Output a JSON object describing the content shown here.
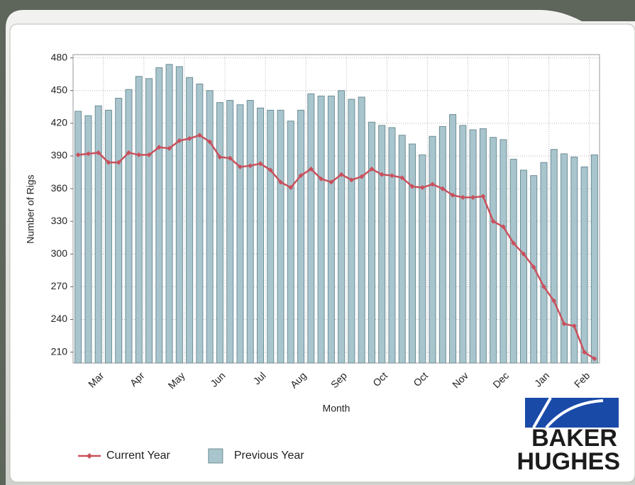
{
  "chart_data": {
    "type": "bar_line",
    "y_axis_label": "Number of Rigs",
    "x_axis_label": "Month",
    "categories": [
      null,
      null,
      "Mar",
      null,
      null,
      null,
      "Apr",
      null,
      null,
      null,
      "May",
      null,
      null,
      null,
      "Jun",
      null,
      null,
      null,
      "Jul",
      null,
      null,
      null,
      "Aug",
      null,
      null,
      null,
      "Sep",
      null,
      null,
      null,
      "Oct",
      null,
      null,
      null,
      "Oct",
      null,
      null,
      null,
      "Nov",
      null,
      null,
      null,
      "Dec",
      null,
      null,
      null,
      "Jan",
      null,
      null,
      null,
      "Feb",
      null
    ],
    "ylim": [
      200,
      483
    ],
    "yticks": [
      210,
      240,
      270,
      300,
      330,
      360,
      390,
      420,
      450,
      480
    ],
    "grid": true,
    "legend": "bottom-left",
    "series": [
      {
        "name": "Previous Year",
        "type": "bar",
        "color": "#a8c5cd",
        "values": [
          431,
          427,
          436,
          432,
          443,
          451,
          463,
          461,
          471,
          474,
          472,
          462,
          456,
          450,
          439,
          441,
          437,
          441,
          434,
          432,
          432,
          422,
          432,
          447,
          445,
          445,
          450,
          442,
          444,
          421,
          418,
          416,
          409,
          401,
          391,
          408,
          417,
          428,
          418,
          414,
          415,
          407,
          405,
          387,
          377,
          372,
          384,
          396,
          392,
          389,
          380,
          391
        ]
      },
      {
        "name": "Current Year",
        "type": "line",
        "color": "#c9505c",
        "values": [
          391,
          392,
          393,
          384,
          384,
          393,
          391,
          391,
          398,
          397,
          404,
          406,
          409,
          403,
          389,
          388,
          380,
          381,
          383,
          377,
          366,
          361,
          372,
          378,
          369,
          366,
          373,
          368,
          371,
          378,
          373,
          372,
          370,
          362,
          361,
          364,
          360,
          354,
          352,
          352,
          353,
          330,
          325,
          310,
          300,
          288,
          270,
          257,
          236,
          234,
          210,
          204
        ]
      }
    ]
  },
  "logo": {
    "line1": "BAKER",
    "line2": "HUGHES"
  }
}
